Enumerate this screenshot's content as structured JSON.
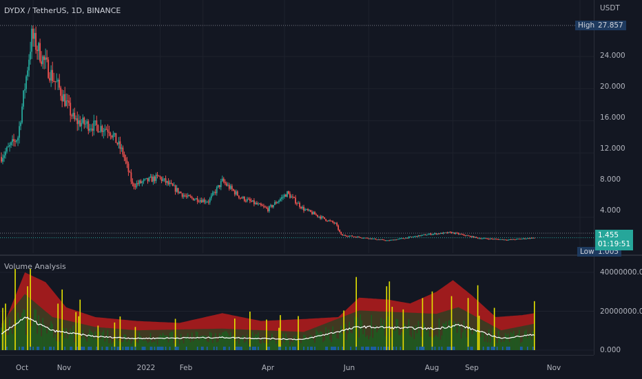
{
  "symbol": {
    "title": "DYDX / TetherUS, 1D, BINANCE"
  },
  "volume_indicator": {
    "title": "Volume Analysis"
  },
  "price_axis": {
    "currency": "USDT",
    "labels": [
      "24.000",
      "20.000",
      "16.000",
      "12.000",
      "8.000",
      "4.000"
    ],
    "high_label": "High",
    "high_value": "27.857",
    "low_label": "Low",
    "low_value": "1.005",
    "last_price": "1.455",
    "countdown": "01:19:51"
  },
  "volume_axis": {
    "labels": [
      "40000000.000",
      "20000000.000",
      "0.000"
    ]
  },
  "time_axis": {
    "labels": [
      "Oct",
      "Nov",
      "2022",
      "Feb",
      "Apr",
      "Jun",
      "Aug",
      "Sep",
      "Nov"
    ]
  },
  "colors": {
    "background": "#131722",
    "up_candle": "#26a69a",
    "down_candle": "#ef5350",
    "volume_band": "#b71c1c",
    "volume_mid_band": "#3b3b22",
    "volume_bar_low": "#1b5e20",
    "volume_bar_high": "#e6e600",
    "average_line": "#ffffff"
  },
  "chart_data": {
    "type": "candlestick",
    "x_range": [
      "2021-09-08",
      "2022-11-10"
    ],
    "price_range": [
      0,
      29
    ],
    "price_ticks": [
      4,
      8,
      12,
      16,
      20,
      24
    ],
    "high": 27.857,
    "low": 1.005,
    "last": 1.455,
    "trend_points": [
      [
        "2021-09-08",
        11.5
      ],
      [
        "2021-09-20",
        14.0
      ],
      [
        "2021-09-30",
        26.5
      ],
      [
        "2021-10-10",
        23.0
      ],
      [
        "2021-10-20",
        20.0
      ],
      [
        "2021-10-31",
        16.0
      ],
      [
        "2021-11-10",
        15.5
      ],
      [
        "2021-11-25",
        15.0
      ],
      [
        "2021-12-05",
        12.0
      ],
      [
        "2021-12-12",
        8.0
      ],
      [
        "2021-12-31",
        9.0
      ],
      [
        "2022-01-20",
        6.5
      ],
      [
        "2022-02-05",
        6.0
      ],
      [
        "2022-02-15",
        8.5
      ],
      [
        "2022-02-28",
        6.5
      ],
      [
        "2022-03-20",
        5.0
      ],
      [
        "2022-04-03",
        7.0
      ],
      [
        "2022-04-15",
        5.0
      ],
      [
        "2022-04-30",
        3.8
      ],
      [
        "2022-05-08",
        3.2
      ],
      [
        "2022-05-12",
        1.8
      ],
      [
        "2022-06-15",
        1.1
      ],
      [
        "2022-07-15",
        1.9
      ],
      [
        "2022-07-31",
        2.1
      ],
      [
        "2022-08-20",
        1.4
      ],
      [
        "2022-09-10",
        1.2
      ],
      [
        "2022-09-29",
        1.455
      ]
    ],
    "volume_ticks": [
      0,
      20000000,
      40000000
    ],
    "volume_range": [
      0,
      44000000
    ],
    "volume_envelope": [
      [
        "2021-09-08",
        10000000
      ],
      [
        "2021-09-25",
        40000000
      ],
      [
        "2021-10-10",
        35000000
      ],
      [
        "2021-10-25",
        22000000
      ],
      [
        "2021-11-15",
        17000000
      ],
      [
        "2021-12-15",
        15000000
      ],
      [
        "2022-01-15",
        14000000
      ],
      [
        "2022-02-15",
        19000000
      ],
      [
        "2022-03-15",
        15000000
      ],
      [
        "2022-04-15",
        16000000
      ],
      [
        "2022-05-10",
        17000000
      ],
      [
        "2022-05-25",
        27000000
      ],
      [
        "2022-06-15",
        26000000
      ],
      [
        "2022-07-01",
        24000000
      ],
      [
        "2022-07-20",
        30000000
      ],
      [
        "2022-08-01",
        36000000
      ],
      [
        "2022-08-15",
        28000000
      ],
      [
        "2022-09-01",
        17000000
      ],
      [
        "2022-09-20",
        18000000
      ],
      [
        "2022-09-29",
        19000000
      ]
    ],
    "volume_average": [
      [
        "2021-09-08",
        8000000
      ],
      [
        "2021-09-25",
        17000000
      ],
      [
        "2021-10-15",
        10000000
      ],
      [
        "2021-11-15",
        7000000
      ],
      [
        "2021-12-15",
        6000000
      ],
      [
        "2022-02-15",
        6500000
      ],
      [
        "2022-04-15",
        5500000
      ],
      [
        "2022-05-25",
        12000000
      ],
      [
        "2022-07-20",
        11000000
      ],
      [
        "2022-08-05",
        13000000
      ],
      [
        "2022-09-05",
        6000000
      ],
      [
        "2022-09-29",
        8000000
      ]
    ]
  }
}
